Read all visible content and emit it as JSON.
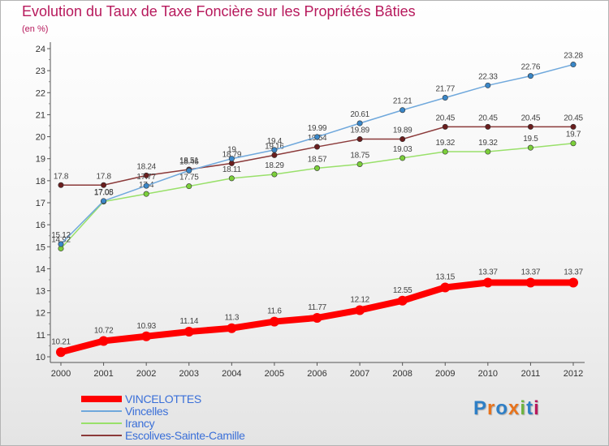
{
  "header": {
    "title": "Evolution du Taux de Taxe Foncière sur les Propriétés Bâties",
    "subtitle": "(en %)"
  },
  "logo": {
    "text": "Proxiti",
    "colors": [
      "#2e7fc6",
      "#e8731c",
      "#2e7fc6",
      "#e8731c",
      "#6db33f",
      "#2e7fc6",
      "#b7195c"
    ]
  },
  "chart_data": {
    "type": "line",
    "title": "Evolution du Taux de Taxe Foncière sur les Propriétés Bâties",
    "ylabel": "(en %)",
    "xlabel": "",
    "x": [
      "2000",
      "2001",
      "2002",
      "2003",
      "2004",
      "2005",
      "2006",
      "2007",
      "2008",
      "2009",
      "2010",
      "2011",
      "2012"
    ],
    "ylim": [
      10,
      24
    ],
    "yticks": [
      "10",
      "11",
      "12",
      "13",
      "14",
      "15",
      "16",
      "17",
      "18",
      "19",
      "20",
      "21",
      "22",
      "23",
      "24"
    ],
    "grid": false,
    "legend_position": "bottom-left",
    "series": [
      {
        "name": "VINCELOTTES",
        "color": "#ff0000",
        "emphasis": true,
        "values": [
          10.21,
          10.72,
          10.93,
          11.14,
          11.3,
          11.6,
          11.77,
          12.12,
          12.55,
          13.15,
          13.37,
          13.37,
          13.37
        ],
        "labels": [
          "10.21",
          "10.72",
          "10.93",
          "11.14",
          "11.3",
          "11.6",
          "11.77",
          "12.12",
          "12.55",
          "13.15",
          "13.37",
          "13.37",
          "13.37"
        ]
      },
      {
        "name": "Vincelles",
        "color": "#6fa8dc",
        "marker": "#3a87c8",
        "values": [
          15.12,
          17.08,
          17.77,
          18.46,
          19,
          19.4,
          19.99,
          20.61,
          21.21,
          21.77,
          22.33,
          22.76,
          23.28
        ],
        "labels": [
          "15.12",
          "17.08",
          "17.77",
          "18.46",
          "19",
          "19.4",
          "19.99",
          "20.61",
          "21.21",
          "21.77",
          "22.33",
          "22.76",
          "23.28"
        ]
      },
      {
        "name": "Irancy",
        "color": "#99e06a",
        "marker": "#7bcf3a",
        "values": [
          14.92,
          17.05,
          17.4,
          17.75,
          18.11,
          18.29,
          18.57,
          18.75,
          19.03,
          19.32,
          19.32,
          19.5,
          19.7
        ],
        "labels": [
          "14.92",
          "17.05",
          "17.4",
          "17.75",
          "18.11",
          "18.29",
          "18.57",
          "18.75",
          "19.03",
          "19.32",
          "19.32",
          "19.5",
          "19.7"
        ]
      },
      {
        "name": "Escolives-Sainte-Camille",
        "color": "#8b3a3a",
        "marker": "#6a1e1e",
        "values": [
          17.8,
          17.8,
          18.24,
          18.51,
          18.79,
          19.16,
          19.54,
          19.89,
          19.89,
          20.45,
          20.45,
          20.45,
          20.45
        ],
        "labels": [
          "17.8",
          "17.8",
          "18.24",
          "18.51",
          "18.79",
          "19.16",
          "19.54",
          "19.89",
          "19.89",
          "20.45",
          "20.45",
          "20.45",
          "20.45"
        ]
      }
    ]
  }
}
